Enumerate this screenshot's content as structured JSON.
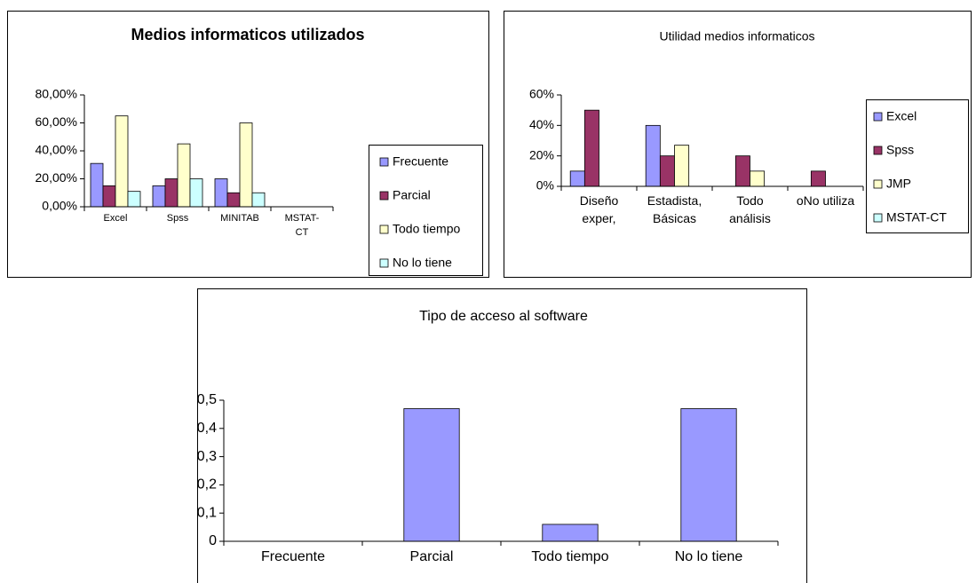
{
  "chart_data": [
    {
      "type": "bar",
      "title": "Medios informaticos utilizados",
      "categories": [
        "Excel",
        "Spss",
        "MINITAB",
        "MSTAT-CT"
      ],
      "series": [
        {
          "name": "Frecuente",
          "color": "#9999ff",
          "values": [
            31,
            15,
            20,
            0
          ]
        },
        {
          "name": "Parcial",
          "color": "#993366",
          "values": [
            15,
            20,
            10,
            0
          ]
        },
        {
          "name": "Todo tiempo",
          "color": "#ffffcc",
          "values": [
            65,
            45,
            60,
            0
          ]
        },
        {
          "name": "No lo tiene",
          "color": "#ccffff",
          "values": [
            11,
            20,
            10,
            0
          ]
        }
      ],
      "ylim": [
        0,
        80
      ],
      "yticks": [
        {
          "value": 0,
          "label": "0,00%"
        },
        {
          "value": 20,
          "label": "20,00%"
        },
        {
          "value": 40,
          "label": "40,00%"
        },
        {
          "value": 60,
          "label": "60,00%"
        },
        {
          "value": 80,
          "label": "80,00%"
        }
      ],
      "legend": "right"
    },
    {
      "type": "bar",
      "title": "Utilidad medios informaticos",
      "categories": [
        "Diseño exper,",
        "Estadista, Básicas",
        "Todo análisis",
        "oNo utiliza"
      ],
      "series": [
        {
          "name": "Excel",
          "color": "#9999ff",
          "values": [
            10,
            40,
            0,
            0
          ]
        },
        {
          "name": "Spss",
          "color": "#993366",
          "values": [
            50,
            20,
            20,
            10
          ]
        },
        {
          "name": "JMP",
          "color": "#ffffcc",
          "values": [
            0,
            27,
            10,
            0
          ]
        },
        {
          "name": "MSTAT-CT",
          "color": "#ccffff",
          "values": [
            0,
            0,
            0,
            0
          ]
        }
      ],
      "ylim": [
        0,
        60
      ],
      "yticks": [
        {
          "value": 0,
          "label": "0%"
        },
        {
          "value": 20,
          "label": "20%"
        },
        {
          "value": 40,
          "label": "40%"
        },
        {
          "value": 60,
          "label": "60%"
        }
      ],
      "legend": "right"
    },
    {
      "type": "bar",
      "title": "Tipo de acceso al software",
      "categories": [
        "Frecuente",
        "Parcial",
        "Todo tiempo",
        "No lo tiene"
      ],
      "values": [
        0,
        0.47,
        0.06,
        0.47
      ],
      "color": "#9999ff",
      "ylim": [
        0,
        0.5
      ],
      "yticks": [
        0,
        {
          "value": 0.1,
          "label": "0,1"
        },
        {
          "value": 0.2,
          "label": "0,2"
        },
        {
          "value": 0.3,
          "label": "0,3"
        },
        {
          "value": 0.4,
          "label": "0,4"
        },
        {
          "value": 0.5,
          "label": "0,5"
        }
      ]
    }
  ]
}
